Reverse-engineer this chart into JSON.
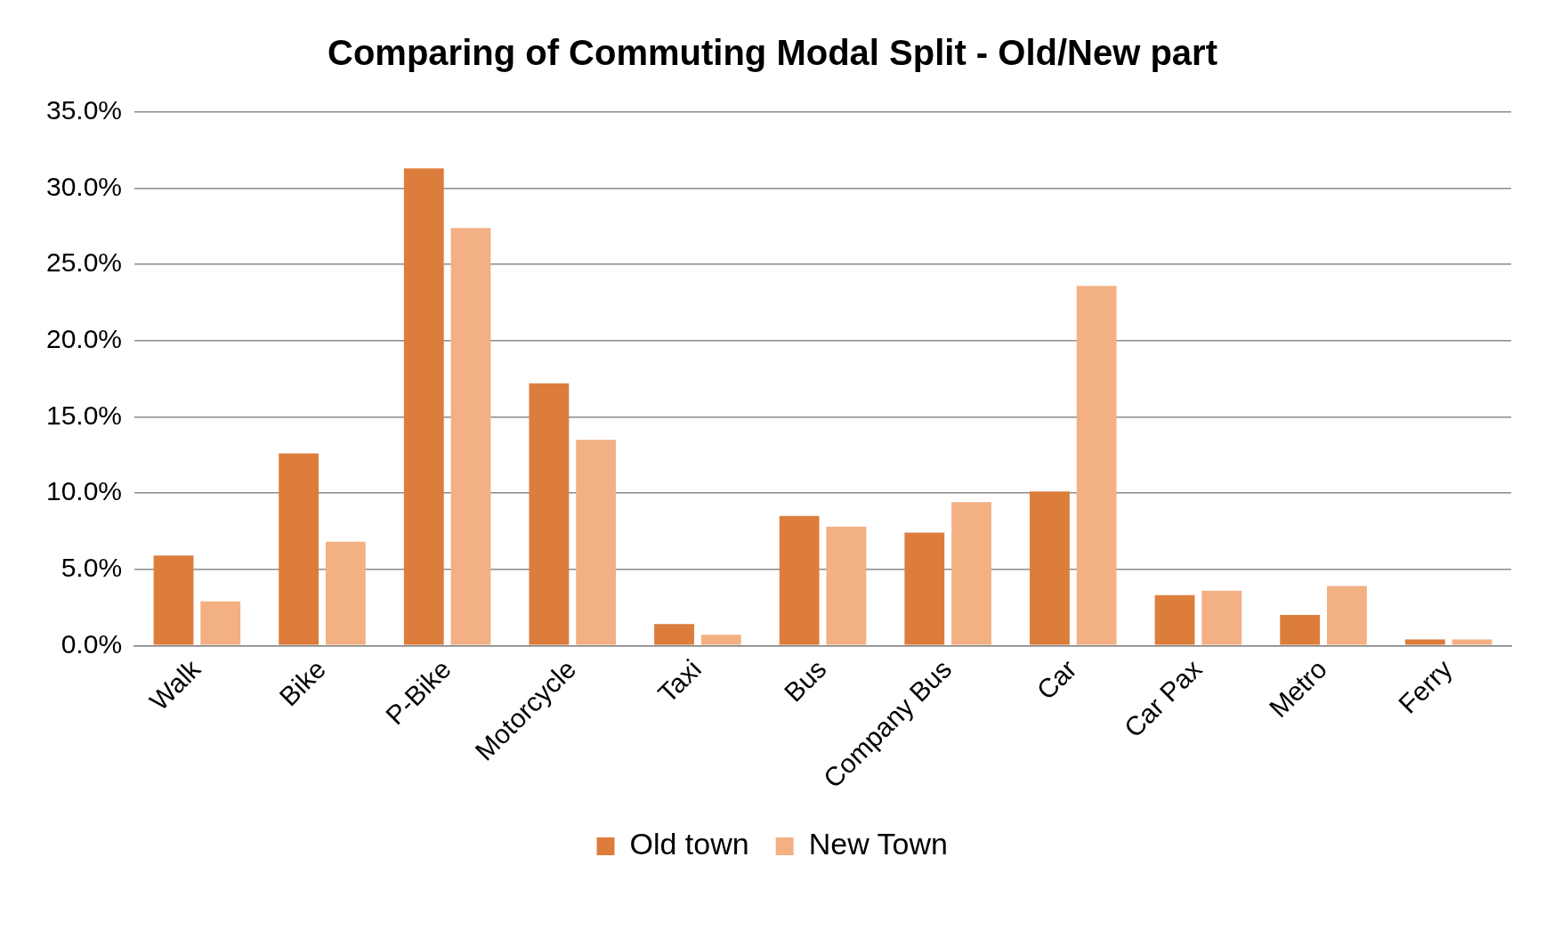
{
  "chart_data": {
    "type": "bar",
    "title": "Comparing of Commuting Modal Split - Old/New part",
    "categories": [
      "Walk",
      "Bike",
      "P-Bike",
      "Motorcycle",
      "Taxi",
      "Bus",
      "Company Bus",
      "Car",
      "Car Pax",
      "Metro",
      "Ferry"
    ],
    "series": [
      {
        "name": "Old town",
        "color": "#dc7d3c",
        "values": [
          5.9,
          12.6,
          31.3,
          17.2,
          1.4,
          8.5,
          7.4,
          10.1,
          3.3,
          2.0,
          0.4
        ]
      },
      {
        "name": "New Town",
        "color": "#f2b083",
        "values": [
          2.9,
          6.8,
          27.4,
          13.5,
          0.7,
          7.8,
          9.4,
          23.6,
          3.6,
          3.9,
          0.4
        ]
      }
    ],
    "ylim": [
      0,
      35
    ],
    "yticks": [
      {
        "value": 0,
        "label": "0.0%"
      },
      {
        "value": 5,
        "label": "5.0%"
      },
      {
        "value": 10,
        "label": "10.0%"
      },
      {
        "value": 15,
        "label": "15.0%"
      },
      {
        "value": 20,
        "label": "20.0%"
      },
      {
        "value": 25,
        "label": "25.0%"
      },
      {
        "value": 30,
        "label": "30.0%"
      },
      {
        "value": 35,
        "label": "35.0%"
      }
    ],
    "grid": "y",
    "legend": "bottom"
  }
}
